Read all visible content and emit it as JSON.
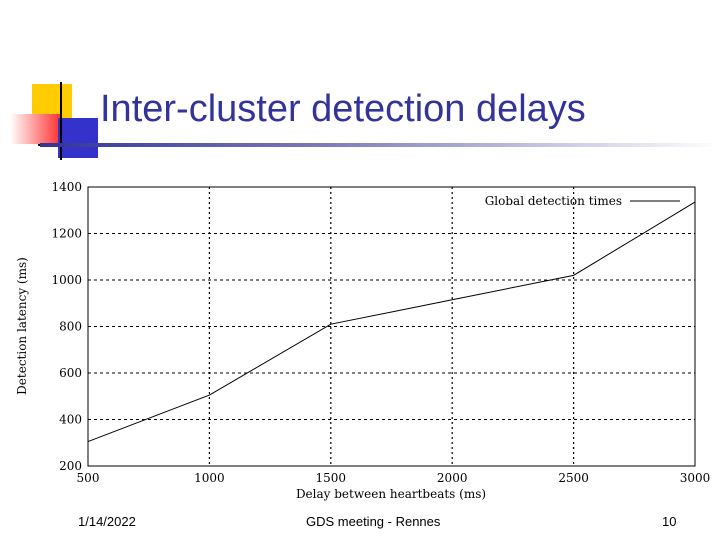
{
  "slide": {
    "title": "Inter-cluster detection delays",
    "footer_date": "1/14/2022",
    "footer_center": "GDS meeting - Rennes",
    "page_number": "10"
  },
  "colors": {
    "title": "#333399",
    "deco_yellow": "#ffcc00",
    "deco_red": "#ff3333",
    "deco_blue": "#3333cc"
  },
  "chart_data": {
    "type": "line",
    "title": "",
    "xlabel": "Delay between heartbeats (ms)",
    "ylabel": "Detection latency (ms)",
    "xlim": [
      500,
      3000
    ],
    "ylim": [
      200,
      1400
    ],
    "xticks": [
      500,
      1000,
      1500,
      2000,
      2500,
      3000
    ],
    "yticks": [
      200,
      400,
      600,
      800,
      1000,
      1200,
      1400
    ],
    "grid": true,
    "legend_position": "top-right",
    "series": [
      {
        "name": "Global detection times",
        "x": [
          500,
          1000,
          1500,
          2000,
          2500,
          3000
        ],
        "y": [
          305,
          505,
          810,
          915,
          1020,
          1335
        ]
      }
    ]
  }
}
